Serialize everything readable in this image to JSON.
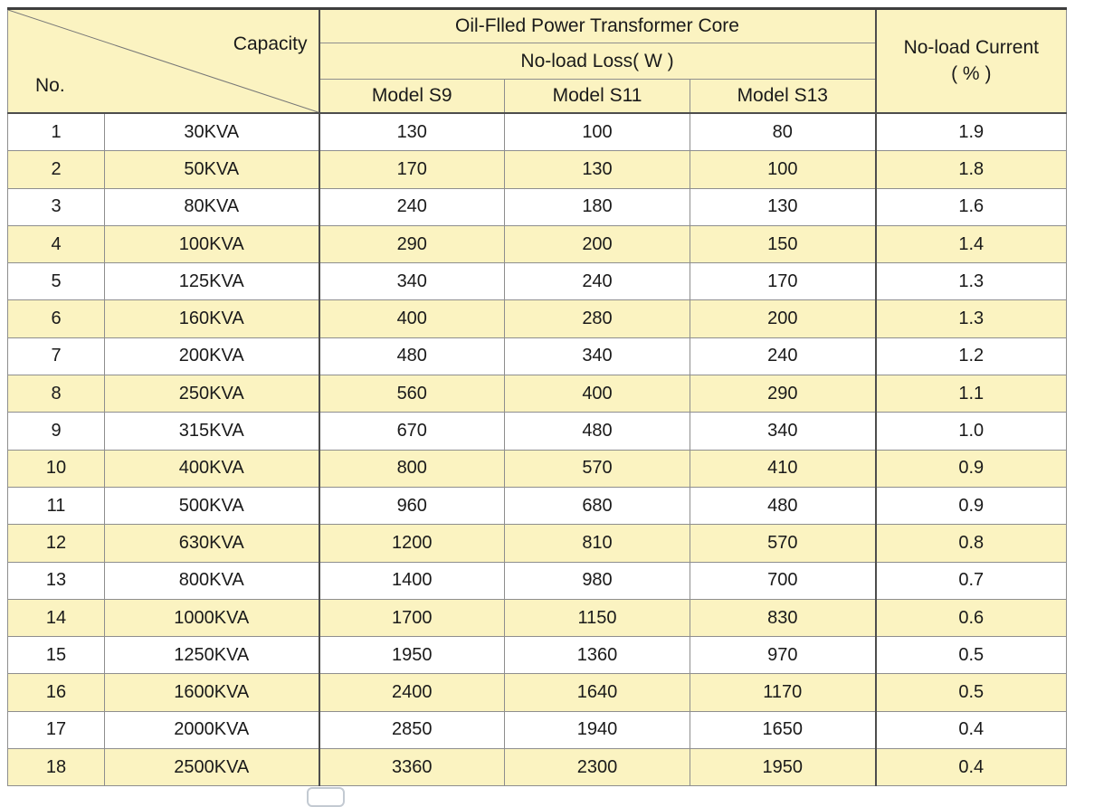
{
  "table": {
    "corner": {
      "no_label": "No.",
      "capacity_label": "Capacity"
    },
    "header": {
      "group_title": "Oil-Flled Power Transformer Core",
      "sub_title": "No-load Loss( W )",
      "models": [
        "Model S9",
        "Model S11",
        "Model S13"
      ],
      "current_line1": "No-load Current",
      "current_line2": "( % )"
    },
    "rows": [
      {
        "no": "1",
        "capacity": "30KVA",
        "s9": "130",
        "s11": "100",
        "s13": "80",
        "current": "1.9"
      },
      {
        "no": "2",
        "capacity": "50KVA",
        "s9": "170",
        "s11": "130",
        "s13": "100",
        "current": "1.8"
      },
      {
        "no": "3",
        "capacity": "80KVA",
        "s9": "240",
        "s11": "180",
        "s13": "130",
        "current": "1.6"
      },
      {
        "no": "4",
        "capacity": "100KVA",
        "s9": "290",
        "s11": "200",
        "s13": "150",
        "current": "1.4"
      },
      {
        "no": "5",
        "capacity": "125KVA",
        "s9": "340",
        "s11": "240",
        "s13": "170",
        "current": "1.3"
      },
      {
        "no": "6",
        "capacity": "160KVA",
        "s9": "400",
        "s11": "280",
        "s13": "200",
        "current": "1.3"
      },
      {
        "no": "7",
        "capacity": "200KVA",
        "s9": "480",
        "s11": "340",
        "s13": "240",
        "current": "1.2"
      },
      {
        "no": "8",
        "capacity": "250KVA",
        "s9": "560",
        "s11": "400",
        "s13": "290",
        "current": "1.1"
      },
      {
        "no": "9",
        "capacity": "315KVA",
        "s9": "670",
        "s11": "480",
        "s13": "340",
        "current": "1.0"
      },
      {
        "no": "10",
        "capacity": "400KVA",
        "s9": "800",
        "s11": "570",
        "s13": "410",
        "current": "0.9"
      },
      {
        "no": "11",
        "capacity": "500KVA",
        "s9": "960",
        "s11": "680",
        "s13": "480",
        "current": "0.9"
      },
      {
        "no": "12",
        "capacity": "630KVA",
        "s9": "1200",
        "s11": "810",
        "s13": "570",
        "current": "0.8"
      },
      {
        "no": "13",
        "capacity": "800KVA",
        "s9": "1400",
        "s11": "980",
        "s13": "700",
        "current": "0.7"
      },
      {
        "no": "14",
        "capacity": "1000KVA",
        "s9": "1700",
        "s11": "1150",
        "s13": "830",
        "current": "0.6"
      },
      {
        "no": "15",
        "capacity": "1250KVA",
        "s9": "1950",
        "s11": "1360",
        "s13": "970",
        "current": "0.5"
      },
      {
        "no": "16",
        "capacity": "1600KVA",
        "s9": "2400",
        "s11": "1640",
        "s13": "1170",
        "current": "0.5"
      },
      {
        "no": "17",
        "capacity": "2000KVA",
        "s9": "2850",
        "s11": "1940",
        "s13": "1650",
        "current": "0.4"
      },
      {
        "no": "18",
        "capacity": "2500KVA",
        "s9": "3360",
        "s11": "2300",
        "s13": "1950",
        "current": "0.4"
      }
    ]
  },
  "colors": {
    "row_highlight": "#fbf3c1",
    "grid_line": "#8e8e8e",
    "strong_line": "#4d4d4d",
    "text": "#1a1a1a"
  }
}
